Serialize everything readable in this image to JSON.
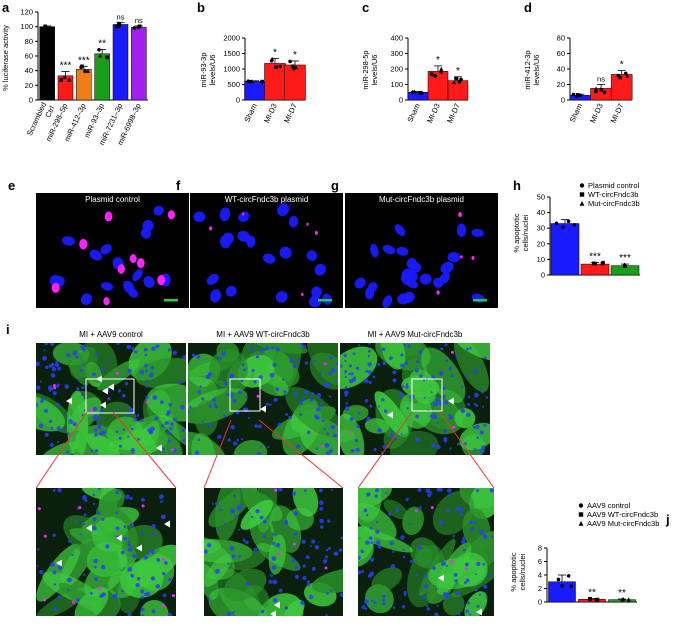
{
  "panel_labels": {
    "a": "a",
    "b": "b",
    "c": "c",
    "d": "d",
    "e": "e",
    "f": "f",
    "g": "g",
    "h": "h",
    "i": "i",
    "j": "j"
  },
  "chart_data": [
    {
      "id": "a",
      "type": "bar",
      "ylabel": "% luciferase activity",
      "ylim": [
        0,
        120
      ],
      "yticks": [
        0,
        20,
        40,
        60,
        80,
        100,
        120
      ],
      "categories": [
        "Scrambled Ctrl",
        "miR-298–5p",
        "miR-412–3p",
        "miR-93–3p",
        "miR-7231–3p",
        "miR-6998–3p"
      ],
      "values": [
        100,
        33,
        42,
        63,
        103,
        99
      ],
      "errors": [
        1,
        6,
        4,
        6,
        3,
        2
      ],
      "colors": [
        "#000000",
        "#ff1a1a",
        "#f07d1a",
        "#1a9e1a",
        "#1a1aff",
        "#a020f0"
      ],
      "significance": [
        "",
        "***",
        "***",
        "**",
        "ns",
        "ns"
      ]
    },
    {
      "id": "b",
      "type": "bar",
      "ylabel": "miR-93-3p levels/U6",
      "ylim": [
        0,
        2000
      ],
      "yticks": [
        0,
        500,
        1000,
        1500,
        2000
      ],
      "categories": [
        "Sham",
        "MI-D3",
        "MI-D7"
      ],
      "values": [
        600,
        1180,
        1130
      ],
      "errors": [
        20,
        160,
        130
      ],
      "colors": [
        "#1a1aff",
        "#ff1a1a",
        "#ff1a1a"
      ],
      "significance": [
        "",
        "*",
        "*"
      ]
    },
    {
      "id": "c",
      "type": "bar",
      "ylabel": "miR-298-5p levels/U6",
      "ylim": [
        0,
        400
      ],
      "yticks": [
        0,
        100,
        200,
        300,
        400
      ],
      "categories": [
        "Sham",
        "MI-D3",
        "MI-D7"
      ],
      "values": [
        50,
        185,
        125
      ],
      "errors": [
        5,
        35,
        25
      ],
      "colors": [
        "#1a1aff",
        "#ff1a1a",
        "#ff1a1a"
      ],
      "significance": [
        "",
        "*",
        "*"
      ]
    },
    {
      "id": "d",
      "type": "bar",
      "ylabel": "miR-412-3p levels/U6",
      "ylim": [
        0,
        80
      ],
      "yticks": [
        0,
        20,
        40,
        60,
        80
      ],
      "categories": [
        "Sham",
        "MI-D3",
        "MI-D7"
      ],
      "values": [
        6,
        15,
        33
      ],
      "errors": [
        1.5,
        5,
        5
      ],
      "colors": [
        "#1a1aff",
        "#ff1a1a",
        "#ff1a1a"
      ],
      "significance": [
        "",
        "ns",
        "*"
      ]
    },
    {
      "id": "h",
      "type": "bar",
      "ylabel": "% apoptotic cells/nuclei",
      "ylim": [
        0,
        50
      ],
      "yticks": [
        0,
        10,
        20,
        30,
        40,
        50
      ],
      "categories": [
        "Plasmid control",
        "WT-circFndc3b",
        "Mut-circFndc3b"
      ],
      "values": [
        33,
        7,
        6
      ],
      "errors": [
        2.5,
        1,
        1
      ],
      "colors": [
        "#1a1aff",
        "#ff1a1a",
        "#1a9e1a"
      ],
      "significance": [
        "",
        "***",
        "***"
      ],
      "legend": [
        "Plasmid control",
        "WT-circFndc3b",
        "Mut-circFndc3b"
      ],
      "legend_markers": [
        "circle",
        "square",
        "triangle"
      ]
    },
    {
      "id": "j",
      "type": "bar",
      "ylabel": "% apoptotic cells/nuclei",
      "ylim": [
        0,
        8
      ],
      "yticks": [
        0,
        2,
        4,
        6,
        8
      ],
      "categories": [
        "AAV9 control",
        "AAV9 WT-circFndc3b",
        "AAV9 Mut-circFndc3b"
      ],
      "values": [
        3,
        0.4,
        0.35
      ],
      "errors": [
        1,
        0.1,
        0.1
      ],
      "colors": [
        "#1a1aff",
        "#ff1a1a",
        "#1a9e1a"
      ],
      "significance": [
        "",
        "**",
        "**"
      ],
      "legend": [
        "AAV9 control",
        "AAV9 WT-circFndc3b",
        "AAV9 Mut-circFndc3b"
      ],
      "legend_markers": [
        "circle",
        "square",
        "triangle"
      ]
    }
  ],
  "micrographs": {
    "e_title": "Plasmid control",
    "f_title": "WT-circFndc3b plasmid",
    "g_title": "Mut-circFndc3b plasmid"
  },
  "tissue": {
    "t1": "MI + AAV9 control",
    "t2": "MI + AAV9 WT-circFndc3b",
    "t3": "MI + AAV9 Mut-circFndc3b"
  },
  "colors": {
    "nuclei": "#1a1aff",
    "apoptotic": "#ff22ff",
    "tissue": "#3cc83c",
    "scalebar": "#22cc44"
  }
}
